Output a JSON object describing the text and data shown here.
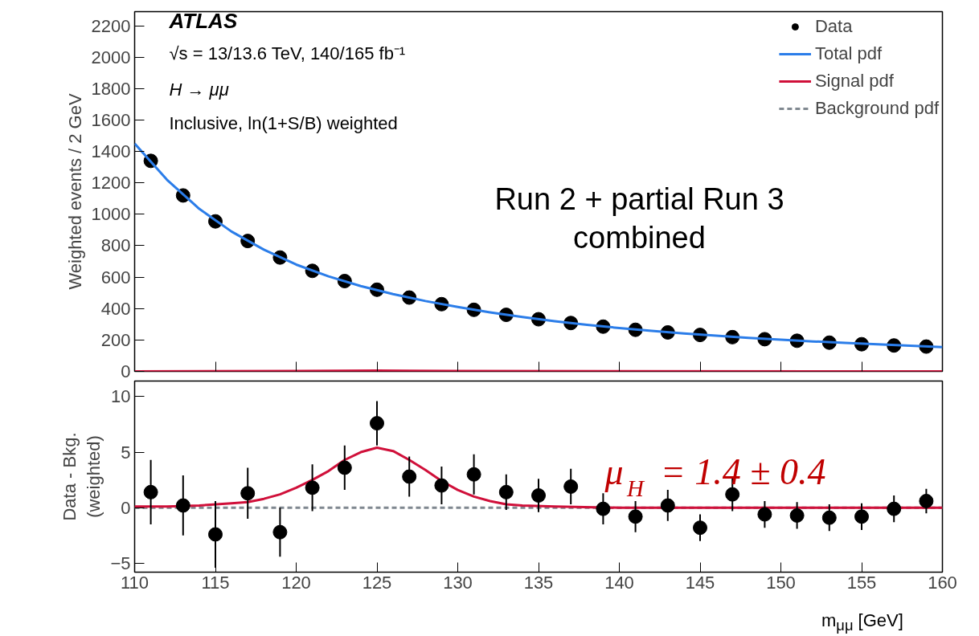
{
  "chart_data": [
    {
      "type": "scatter",
      "xlim": [
        110,
        160
      ],
      "ylim": [
        0,
        2290
      ],
      "xticks": [
        110,
        115,
        120,
        125,
        130,
        135,
        140,
        145,
        150,
        155,
        160
      ],
      "yticks": [
        0,
        200,
        400,
        600,
        800,
        1000,
        1200,
        1400,
        1600,
        1800,
        2000,
        2200
      ],
      "tick_labels": "y",
      "ylabel": "Weighted events / 2 GeV",
      "legend": "top right",
      "grid": false,
      "annotations": [
        "ATLAS",
        "√s = 13/13.6 TeV, 140/165 fb⁻¹",
        "H → μμ",
        "Inclusive, ln(1+S/B) weighted",
        "Run 2 + partial Run 3\ncombined"
      ],
      "series": [
        {
          "name": "Data",
          "marker": "circle",
          "color": "#000000",
          "x": [
            111,
            113,
            115,
            117,
            119,
            121,
            123,
            125,
            127,
            129,
            131,
            133,
            135,
            137,
            139,
            141,
            143,
            145,
            147,
            149,
            151,
            153,
            155,
            157,
            159
          ],
          "values": [
            1340,
            1120,
            955,
            830,
            725,
            640,
            575,
            520,
            470,
            428,
            392,
            360,
            332,
            308,
            285,
            265,
            248,
            232,
            218,
            205,
            195,
            183,
            173,
            165,
            158
          ]
        },
        {
          "name": "Total pdf",
          "type": "line",
          "color": "#2b7de9",
          "x": [
            110,
            112,
            114,
            116,
            118,
            120,
            122,
            124,
            126,
            128,
            130,
            132,
            134,
            136,
            138,
            140,
            142,
            144,
            146,
            148,
            150,
            152,
            154,
            156,
            158,
            160
          ],
          "values": [
            1450,
            1220,
            1035,
            890,
            775,
            680,
            605,
            543,
            492,
            448,
            410,
            376,
            346,
            320,
            297,
            276,
            258,
            242,
            227,
            214,
            202,
            191,
            181,
            172,
            164,
            155
          ]
        },
        {
          "name": "Signal pdf",
          "type": "line",
          "color": "#d0103a",
          "x": [
            110,
            120,
            125,
            130,
            160
          ],
          "values": [
            0,
            2,
            5,
            2,
            0
          ]
        }
      ]
    },
    {
      "type": "scatter",
      "xlim": [
        110,
        160
      ],
      "ylim": [
        -5.8,
        11.4
      ],
      "xticks": [
        110,
        115,
        120,
        125,
        130,
        135,
        140,
        145,
        150,
        155,
        160
      ],
      "yticks": [
        {
          "value": -5,
          "label": "−5"
        },
        0,
        5,
        10
      ],
      "xlabel": "m$_{μμ}$ [GeV]",
      "ylabel": "Data - Bkg.\n(weighted)",
      "grid": false,
      "annotations": [
        "μ$_{H}$ = 1.4 ± 0.4"
      ],
      "series": [
        {
          "type": "line",
          "name": "Background pdf",
          "color": "#808890",
          "line_style": "dashed",
          "x": [
            110,
            160
          ],
          "values": [
            0,
            0
          ]
        },
        {
          "type": "line",
          "color": "#d0103a",
          "x": [
            110,
            112,
            114,
            116,
            117,
            118,
            119,
            120,
            121,
            122,
            123,
            124,
            125,
            126,
            127,
            128,
            129,
            130,
            131,
            132,
            133,
            134,
            136,
            140,
            160
          ],
          "values": [
            0.1,
            0.1,
            0.2,
            0.4,
            0.5,
            0.8,
            1.2,
            1.8,
            2.5,
            3.3,
            4.3,
            5.0,
            5.4,
            5.1,
            4.3,
            3.4,
            2.4,
            1.6,
            1.0,
            0.6,
            0.3,
            0.2,
            0.1,
            0,
            0
          ]
        },
        {
          "marker": "circle",
          "color": "#000000",
          "x": [
            111,
            113,
            115,
            117,
            119,
            121,
            123,
            125,
            127,
            129,
            131,
            133,
            135,
            137,
            139,
            141,
            143,
            145,
            147,
            149,
            151,
            153,
            155,
            157,
            159
          ],
          "values": [
            1.4,
            0.2,
            -2.4,
            1.3,
            -2.2,
            1.8,
            3.6,
            7.6,
            2.8,
            2.0,
            3.0,
            1.4,
            1.1,
            1.9,
            -0.1,
            -0.8,
            0.2,
            -1.8,
            1.2,
            -0.6,
            -0.7,
            -0.9,
            -0.8,
            -0.1,
            0.6
          ],
          "errors": [
            2.9,
            2.7,
            3,
            2.3,
            2.2,
            2.1,
            2,
            2,
            1.8,
            1.7,
            1.8,
            1.6,
            1.5,
            1.6,
            1.4,
            1.4,
            1.4,
            1.2,
            1.5,
            1.2,
            1.2,
            1.2,
            1.2,
            1.2,
            1.1
          ]
        }
      ]
    }
  ]
}
